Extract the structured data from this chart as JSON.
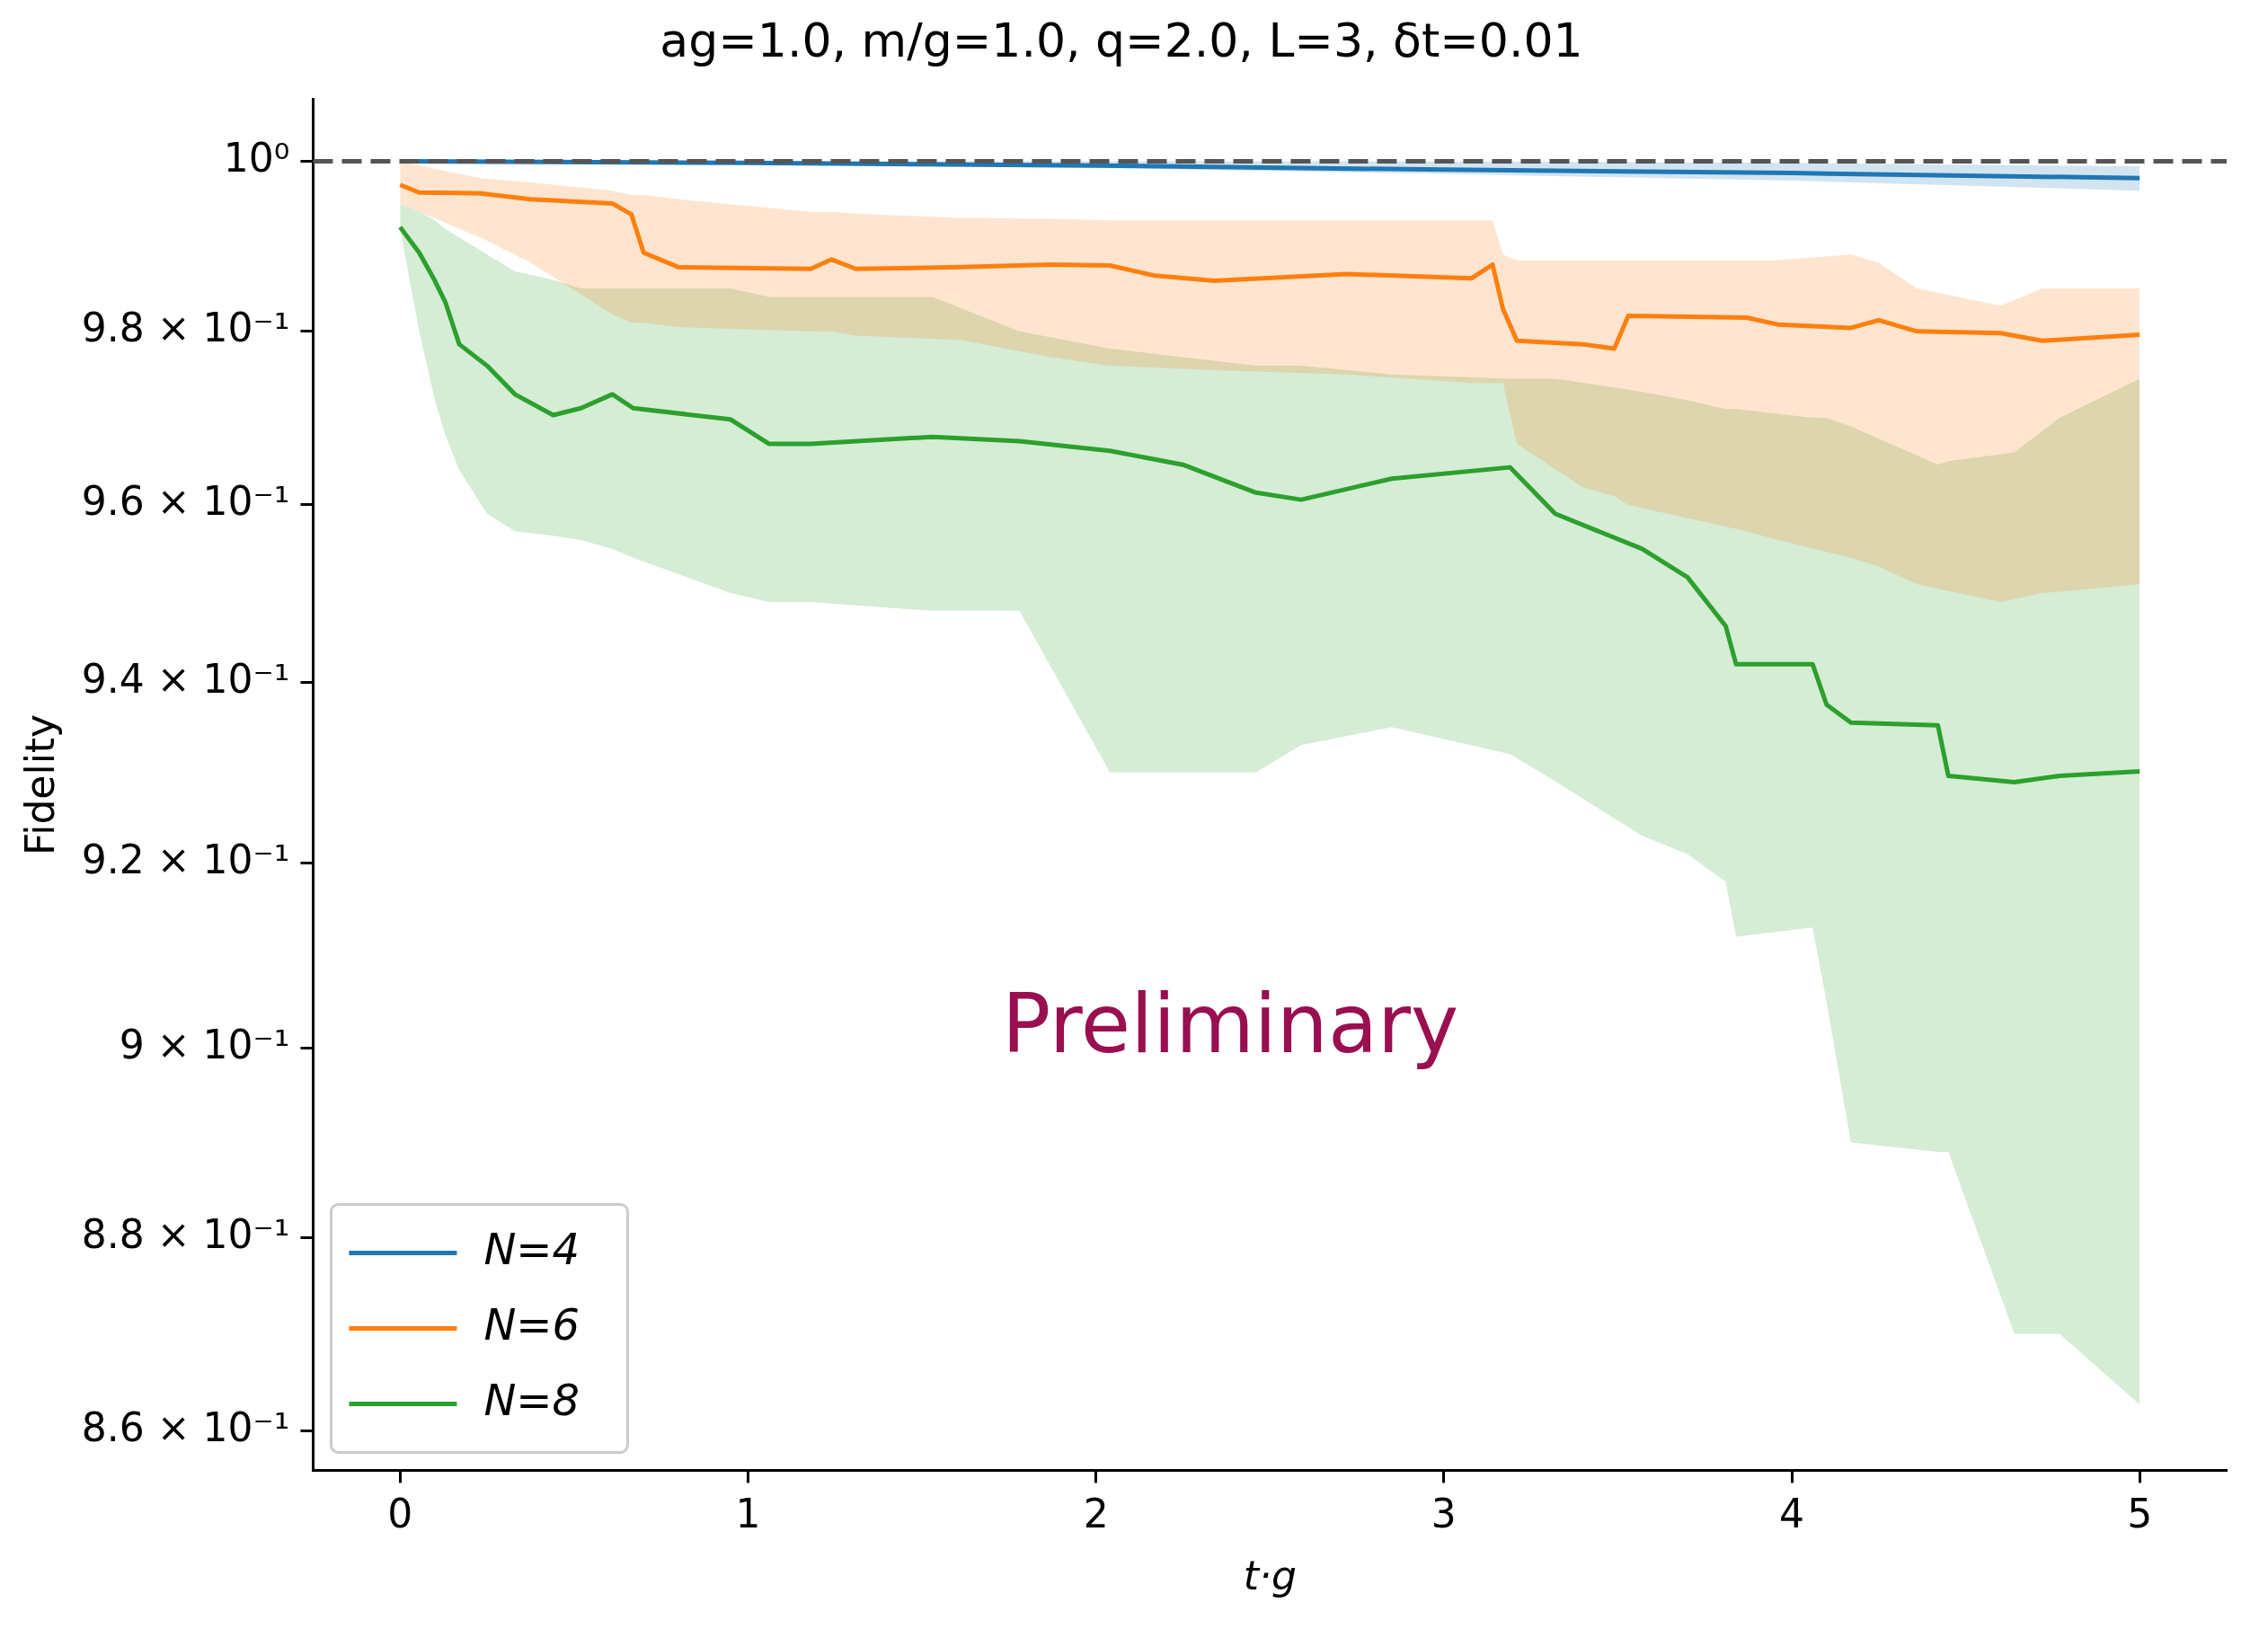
{
  "chart_data": {
    "type": "line",
    "title": "ag=1.0, m/g=1.0, q=2.0, L=3, δt=0.01",
    "xlabel": "t·g",
    "ylabel": "Fidelity",
    "log": "y",
    "xlim": [
      -0.25,
      5.25
    ],
    "xticks": [
      0,
      1,
      2,
      3,
      4,
      5
    ],
    "ylim": [
      0.856,
      1.0074
    ],
    "yticks": [
      {
        "value": 0.86,
        "label": "8.6 × 10⁻¹"
      },
      {
        "value": 0.88,
        "label": "8.8 × 10⁻¹"
      },
      {
        "value": 0.9,
        "label": "9 × 10⁻¹"
      },
      {
        "value": 0.92,
        "label": "9.2 × 10⁻¹"
      },
      {
        "value": 0.94,
        "label": "9.4 × 10⁻¹"
      },
      {
        "value": 0.96,
        "label": "9.6 × 10⁻¹"
      },
      {
        "value": 0.98,
        "label": "9.8 × 10⁻¹"
      },
      {
        "value": 1,
        "label": "10⁰"
      }
    ],
    "legend": "bottom left",
    "annotations": [
      "Preliminary"
    ],
    "ref_lines": [
      {
        "axis": "y",
        "value": 1,
        "color": "#555555",
        "line_style": "dashed"
      }
    ],
    "series": [
      {
        "name": "N=4",
        "color": "#1f77b4",
        "x": [
          0,
          1,
          2,
          3,
          4,
          5
        ],
        "values": [
          1,
          0.9998,
          0.9995,
          0.999,
          0.9986,
          0.998
        ],
        "lower": [
          1,
          0.9997,
          0.9992,
          0.9985,
          0.9977,
          0.9965
        ],
        "upper": [
          1,
          1,
          1,
          1,
          0.9998,
          0.9994
        ]
      },
      {
        "name": "N=6",
        "color": "#ff7f0e",
        "x": [
          0,
          0.055,
          0.23,
          0.375,
          0.61,
          0.665,
          0.7,
          0.8,
          1.18,
          1.24,
          1.31,
          1.61,
          1.87,
          2.04,
          2.17,
          2.34,
          2.72,
          3.08,
          3.14,
          3.17,
          3.21,
          3.4,
          3.49,
          3.53,
          3.87,
          3.96,
          4.17,
          4.25,
          4.36,
          4.6,
          4.72,
          5
        ],
        "values": [
          0.9972,
          0.9963,
          0.9962,
          0.9955,
          0.995,
          0.9937,
          0.9892,
          0.9875,
          0.9873,
          0.9884,
          0.9873,
          0.9875,
          0.9878,
          0.9877,
          0.9865,
          0.9859,
          0.9867,
          0.9862,
          0.9878,
          0.9826,
          0.9789,
          0.9785,
          0.978,
          0.9818,
          0.9816,
          0.9808,
          0.9804,
          0.9813,
          0.98,
          0.9798,
          0.9789,
          0.9796
        ],
        "lower": [
          0.995,
          0.994,
          0.991,
          0.988,
          0.982,
          0.981,
          0.981,
          0.9805,
          0.98,
          0.98,
          0.9795,
          0.979,
          0.977,
          0.976,
          0.9758,
          0.9755,
          0.975,
          0.974,
          0.974,
          0.974,
          0.967,
          0.962,
          0.961,
          0.96,
          0.957,
          0.956,
          0.954,
          0.953,
          0.951,
          0.949,
          0.95,
          0.951
        ],
        "upper": [
          1,
          0.9995,
          0.998,
          0.9975,
          0.9965,
          0.996,
          0.996,
          0.9955,
          0.994,
          0.994,
          0.9938,
          0.9933,
          0.9932,
          0.993,
          0.993,
          0.993,
          0.993,
          0.993,
          0.993,
          0.989,
          0.9883,
          0.9883,
          0.9883,
          0.9883,
          0.9883,
          0.9883,
          0.989,
          0.988,
          0.985,
          0.983,
          0.985,
          0.985
        ]
      },
      {
        "name": "N=8",
        "color": "#2ca02c",
        "x": [
          0,
          0.055,
          0.1,
          0.13,
          0.17,
          0.25,
          0.33,
          0.44,
          0.52,
          0.61,
          0.67,
          0.95,
          1.06,
          1.18,
          1.53,
          1.78,
          2.04,
          2.25,
          2.46,
          2.59,
          2.85,
          3.19,
          3.32,
          3.57,
          3.7,
          3.81,
          3.84,
          4.06,
          4.1,
          4.17,
          4.42,
          4.45,
          4.64,
          4.77,
          5
        ],
        "values": [
          0.9922,
          0.9892,
          0.9859,
          0.9834,
          0.9785,
          0.976,
          0.9727,
          0.9703,
          0.9711,
          0.9727,
          0.9711,
          0.9698,
          0.967,
          0.967,
          0.9678,
          0.9673,
          0.9662,
          0.9646,
          0.9614,
          0.9606,
          0.963,
          0.9643,
          0.959,
          0.955,
          0.9518,
          0.9463,
          0.942,
          0.942,
          0.9375,
          0.9355,
          0.9352,
          0.9296,
          0.9289,
          0.9296,
          0.9301
        ],
        "lower": [
          0.992,
          0.98,
          0.972,
          0.968,
          0.964,
          0.959,
          0.957,
          0.9565,
          0.956,
          0.955,
          0.954,
          0.95,
          0.949,
          0.949,
          0.948,
          0.948,
          0.93,
          0.93,
          0.93,
          0.933,
          0.935,
          0.932,
          0.929,
          0.923,
          0.921,
          0.918,
          0.912,
          0.913,
          0.905,
          0.89,
          0.889,
          0.889,
          0.87,
          0.87,
          0.8627
        ],
        "upper": [
          0.995,
          0.994,
          0.993,
          0.992,
          0.991,
          0.989,
          0.987,
          0.986,
          0.985,
          0.985,
          0.985,
          0.985,
          0.984,
          0.984,
          0.984,
          0.98,
          0.978,
          0.977,
          0.976,
          0.976,
          0.975,
          0.9745,
          0.9745,
          0.973,
          0.972,
          0.971,
          0.971,
          0.97,
          0.97,
          0.969,
          0.9646,
          0.965,
          0.966,
          0.97,
          0.9745
        ]
      }
    ]
  }
}
